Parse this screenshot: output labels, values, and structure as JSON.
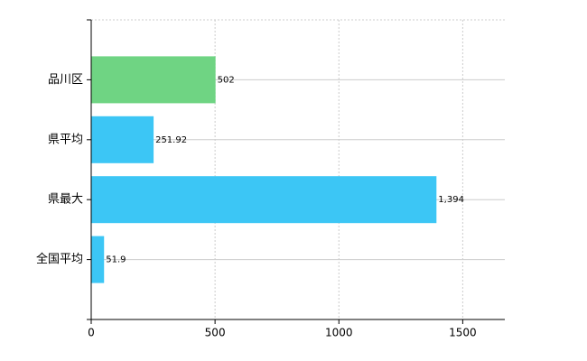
{
  "chart_data": {
    "type": "barh",
    "categories": [
      "品川区",
      "県平均",
      "県最大",
      "全国平均"
    ],
    "values": [
      502,
      251.92,
      1394,
      51.9
    ],
    "value_labels": [
      "502",
      "251.92",
      "1,394",
      "51.9"
    ],
    "colors": [
      "#6fd483",
      "#3cc6f5",
      "#3cc6f5",
      "#3cc6f5"
    ],
    "xlim": [
      0,
      1670
    ],
    "xticks": [
      0,
      500,
      1000,
      1500
    ],
    "grid": true
  }
}
